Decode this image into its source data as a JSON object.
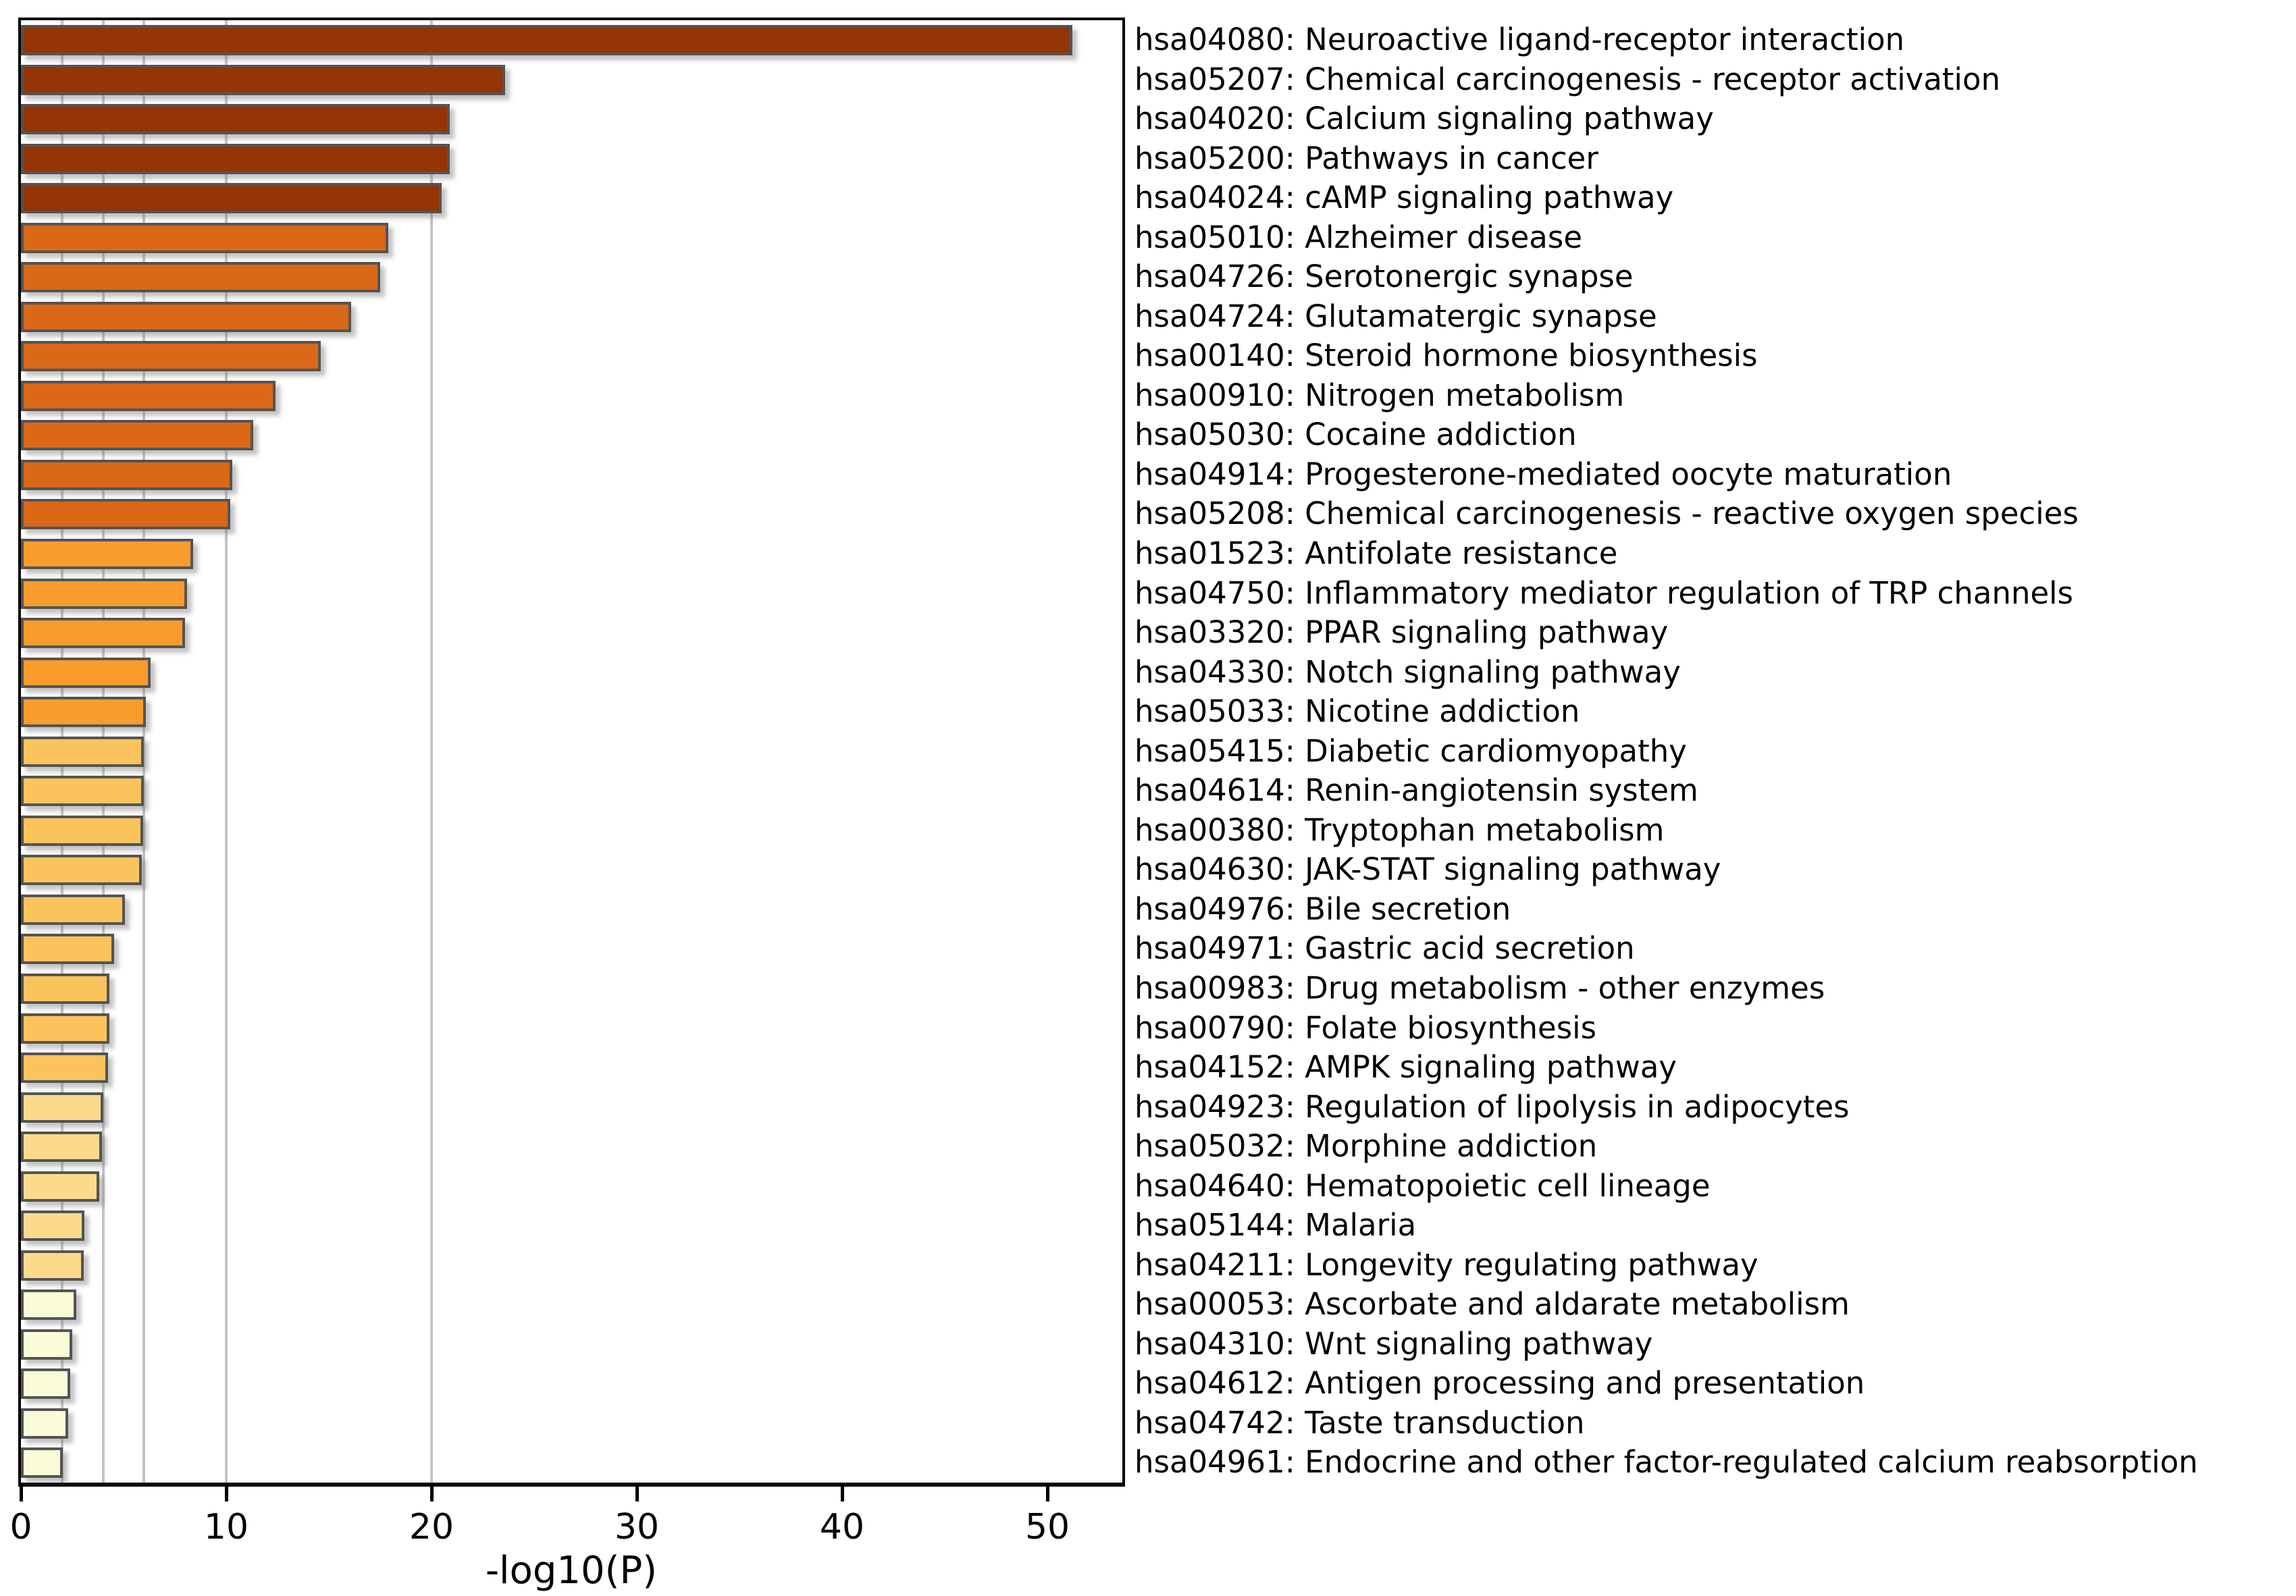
{
  "chart_data": {
    "type": "bar",
    "orientation": "horizontal",
    "title": "",
    "xlabel": "-log10(P)",
    "xlim": [
      0,
      53.65
    ],
    "xticks": [
      0,
      10,
      20,
      30,
      40,
      50
    ],
    "reference_lines": [
      2,
      4,
      6,
      10,
      20
    ],
    "grid_on": true,
    "legend_position": "none",
    "palette": {
      "bin_20_plus": "#953404",
      "bin_10_20": "#DB6817",
      "bin_6_10": "#FA9C2B",
      "bin_4_6": "#FBC35C",
      "bin_3_4": "#FBDA8B",
      "bin_2_3": "#FAFAD7"
    },
    "rows": [
      {
        "label": "hsa04080: Neuroactive ligand-receptor interaction",
        "value": 51.2,
        "bin": "bin_20_plus"
      },
      {
        "label": "hsa05207: Chemical carcinogenesis - receptor activation",
        "value": 23.6,
        "bin": "bin_20_plus"
      },
      {
        "label": "hsa04020: Calcium signaling pathway",
        "value": 20.9,
        "bin": "bin_20_plus"
      },
      {
        "label": "hsa05200: Pathways in cancer",
        "value": 20.9,
        "bin": "bin_20_plus"
      },
      {
        "label": "hsa04024: cAMP signaling pathway",
        "value": 20.5,
        "bin": "bin_20_plus"
      },
      {
        "label": "hsa05010: Alzheimer disease",
        "value": 17.9,
        "bin": "bin_10_20"
      },
      {
        "label": "hsa04726: Serotonergic synapse",
        "value": 17.5,
        "bin": "bin_10_20"
      },
      {
        "label": "hsa04724: Glutamatergic synapse",
        "value": 16.1,
        "bin": "bin_10_20"
      },
      {
        "label": "hsa00140: Steroid hormone biosynthesis",
        "value": 14.6,
        "bin": "bin_10_20"
      },
      {
        "label": "hsa00910: Nitrogen metabolism",
        "value": 12.4,
        "bin": "bin_10_20"
      },
      {
        "label": "hsa05030: Cocaine addiction",
        "value": 11.3,
        "bin": "bin_10_20"
      },
      {
        "label": "hsa04914: Progesterone-mediated oocyte maturation",
        "value": 10.3,
        "bin": "bin_10_20"
      },
      {
        "label": "hsa05208: Chemical carcinogenesis - reactive oxygen species",
        "value": 10.2,
        "bin": "bin_10_20"
      },
      {
        "label": "hsa01523: Antifolate resistance",
        "value": 8.4,
        "bin": "bin_6_10"
      },
      {
        "label": "hsa04750: Inflammatory mediator regulation of TRP channels",
        "value": 8.1,
        "bin": "bin_6_10"
      },
      {
        "label": "hsa03320: PPAR signaling pathway",
        "value": 8.0,
        "bin": "bin_6_10"
      },
      {
        "label": "hsa04330: Notch signaling pathway",
        "value": 6.3,
        "bin": "bin_6_10"
      },
      {
        "label": "hsa05033: Nicotine addiction",
        "value": 6.1,
        "bin": "bin_6_10"
      },
      {
        "label": "hsa05415: Diabetic cardiomyopathy",
        "value": 6.0,
        "bin": "bin_4_6"
      },
      {
        "label": "hsa04614: Renin-angiotensin system",
        "value": 6.0,
        "bin": "bin_4_6"
      },
      {
        "label": "hsa00380: Tryptophan metabolism",
        "value": 5.95,
        "bin": "bin_4_6"
      },
      {
        "label": "hsa04630: JAK-STAT signaling pathway",
        "value": 5.9,
        "bin": "bin_4_6"
      },
      {
        "label": "hsa04976: Bile secretion",
        "value": 5.05,
        "bin": "bin_4_6"
      },
      {
        "label": "hsa04971: Gastric acid secretion",
        "value": 4.55,
        "bin": "bin_4_6"
      },
      {
        "label": "hsa00983: Drug metabolism - other enzymes",
        "value": 4.3,
        "bin": "bin_4_6"
      },
      {
        "label": "hsa00790: Folate biosynthesis",
        "value": 4.3,
        "bin": "bin_4_6"
      },
      {
        "label": "hsa04152: AMPK signaling pathway",
        "value": 4.25,
        "bin": "bin_4_6"
      },
      {
        "label": "hsa04923: Regulation of lipolysis in adipocytes",
        "value": 4.0,
        "bin": "bin_3_4"
      },
      {
        "label": "hsa05032: Morphine addiction",
        "value": 3.95,
        "bin": "bin_3_4"
      },
      {
        "label": "hsa04640: Hematopoietic cell lineage",
        "value": 3.8,
        "bin": "bin_3_4"
      },
      {
        "label": "hsa05144: Malaria",
        "value": 3.1,
        "bin": "bin_3_4"
      },
      {
        "label": "hsa04211: Longevity regulating pathway",
        "value": 3.05,
        "bin": "bin_3_4"
      },
      {
        "label": "hsa00053: Ascorbate and aldarate metabolism",
        "value": 2.7,
        "bin": "bin_2_3"
      },
      {
        "label": "hsa04310: Wnt signaling pathway",
        "value": 2.5,
        "bin": "bin_2_3"
      },
      {
        "label": "hsa04612: Antigen processing and presentation",
        "value": 2.4,
        "bin": "bin_2_3"
      },
      {
        "label": "hsa04742: Taste transduction",
        "value": 2.3,
        "bin": "bin_2_3"
      },
      {
        "label": "hsa04961: Endocrine and other factor-regulated calcium reabsorption",
        "value": 2.05,
        "bin": "bin_2_3"
      }
    ]
  },
  "styles": {
    "grid_color": "#C3C3C3",
    "bar_border_color": "#545454",
    "axis_color": "#000000",
    "background": "#FFFFFF",
    "text_color": "#000000"
  }
}
